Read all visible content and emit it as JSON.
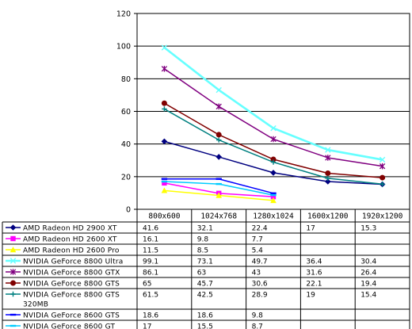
{
  "chart_data": {
    "type": "line",
    "categories": [
      "800x600",
      "1024x768",
      "1280x1024",
      "1600x1200",
      "1920x1200"
    ],
    "ylim": [
      0,
      120
    ],
    "yticks": [
      0,
      20,
      40,
      60,
      80,
      100,
      120
    ],
    "grid": true,
    "legend_placement": "data table below plot",
    "series": [
      {
        "name": "AMD Radeon HD 2900 XT",
        "values": [
          41.6,
          32.1,
          22.4,
          17,
          15.3
        ],
        "color": "#000080",
        "marker": "diamond"
      },
      {
        "name": "AMD Radeon HD 2600 XT",
        "values": [
          16.1,
          9.8,
          7.7,
          null,
          null
        ],
        "color": "#ff00ff",
        "marker": "square"
      },
      {
        "name": "AMD Radeon HD 2600 Pro",
        "values": [
          11.5,
          8.5,
          5.4,
          null,
          null
        ],
        "color": "#ffff00",
        "marker": "triangle"
      },
      {
        "name": "NVIDIA GeForce 8800 Ultra",
        "values": [
          99.1,
          73.1,
          49.7,
          36.4,
          30.4
        ],
        "color": "#66ffff",
        "marker": "x"
      },
      {
        "name": "NVIDIA GeForce 8800 GTX",
        "values": [
          86.1,
          63,
          43,
          31.6,
          26.4
        ],
        "color": "#800080",
        "marker": "star"
      },
      {
        "name": "NVIDIA GeForce 8800 GTS",
        "values": [
          65,
          45.7,
          30.6,
          22.1,
          19.4
        ],
        "color": "#800000",
        "marker": "circle"
      },
      {
        "name": "NVIDIA GeForce 8800 GTS 320MB",
        "values": [
          61.5,
          42.5,
          28.9,
          19,
          15.4
        ],
        "color": "#008080",
        "marker": "plus"
      },
      {
        "name": "NVIDIA GeForce 8600 GTS",
        "values": [
          18.6,
          18.6,
          9.8,
          null,
          null
        ],
        "color": "#0000ff",
        "marker": "dash"
      },
      {
        "name": "NVIDIA GeForce 8600 GT",
        "values": [
          17,
          15.5,
          8.7,
          null,
          null
        ],
        "color": "#00ccff",
        "marker": "dash"
      }
    ],
    "table_values": [
      [
        "41.6",
        "32.1",
        "22.4",
        "17",
        "15.3"
      ],
      [
        "16.1",
        "9.8",
        "7.7",
        "",
        ""
      ],
      [
        "11.5",
        "8.5",
        "5.4",
        "",
        ""
      ],
      [
        "99.1",
        "73.1",
        "49.7",
        "36.4",
        "30.4"
      ],
      [
        "86.1",
        "63",
        "43",
        "31.6",
        "26.4"
      ],
      [
        "65",
        "45.7",
        "30.6",
        "22.1",
        "19.4"
      ],
      [
        "61.5",
        "42.5",
        "28.9",
        "19",
        "15.4"
      ],
      [
        "18.6",
        "18.6",
        "9.8",
        "",
        ""
      ],
      [
        "17",
        "15.5",
        "8.7",
        "",
        ""
      ]
    ],
    "row_label_lines": [
      [
        "AMD Radeon HD 2900 XT"
      ],
      [
        "AMD Radeon HD 2600 XT"
      ],
      [
        "AMD Radeon HD 2600 Pro"
      ],
      [
        "NVIDIA GeForce 8800 Ultra"
      ],
      [
        "NVIDIA GeForce 8800 GTX"
      ],
      [
        "NVIDIA GeForce 8800 GTS"
      ],
      [
        "NVIDIA GeForce 8800 GTS",
        "320MB"
      ],
      [
        "NVIDIA GeForce 8600 GTS"
      ],
      [
        "NVIDIA GeForce 8600 GT"
      ]
    ]
  }
}
